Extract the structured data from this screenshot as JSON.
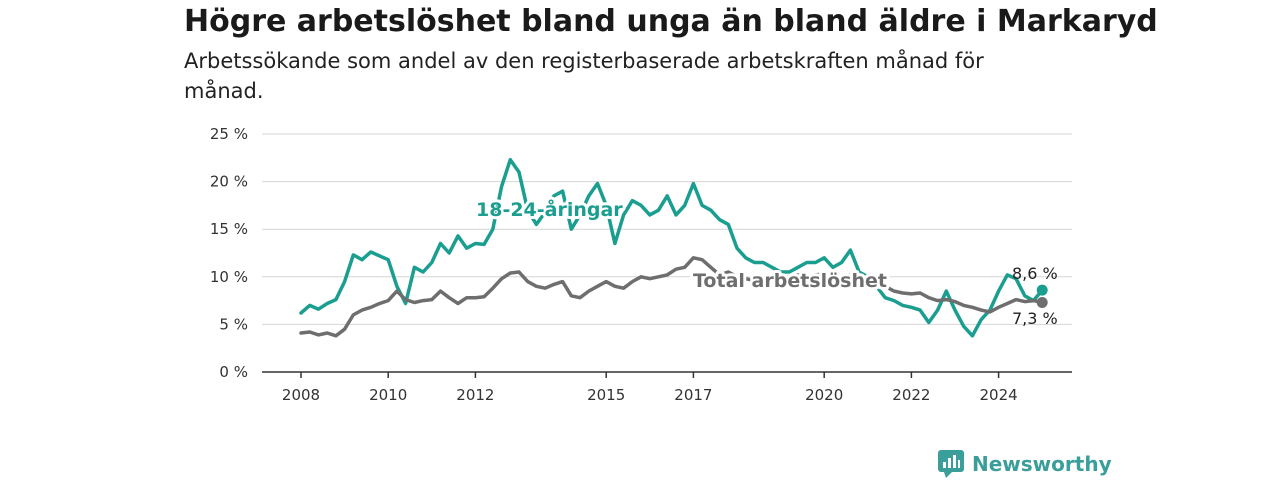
{
  "title": "Högre arbetslöshet bland unga än bland äldre i Markaryd",
  "subtitle": "Arbetssökande som andel av den registerbaserade arbetskraften månad för månad.",
  "brand": {
    "name": "Newsworthy",
    "icon": "newsworthy-logo-icon",
    "color": "#3a9e9a"
  },
  "chart_data": {
    "type": "line",
    "title": "Högre arbetslöshet bland unga än bland äldre i Markaryd",
    "subtitle": "Arbetssökande som andel av den registerbaserade arbetskraften månad för månad.",
    "xlabel": "",
    "ylabel": "",
    "xlim": [
      2007.8,
      2025.6
    ],
    "ylim": [
      0,
      25
    ],
    "x_ticks": [
      "2008",
      "2010",
      "2012",
      "2015",
      "2017",
      "2020",
      "2022",
      "2024"
    ],
    "y_ticks": [
      "0 %",
      "5 %",
      "10 %",
      "15 %",
      "20 %",
      "25 %"
    ],
    "grid": true,
    "series": [
      {
        "name": "18-24-åringar",
        "color": "#1a9e8f",
        "end_label": "8,6 %",
        "x": [
          2008.0,
          2008.2,
          2008.4,
          2008.6,
          2008.8,
          2009.0,
          2009.2,
          2009.4,
          2009.6,
          2009.8,
          2010.0,
          2010.2,
          2010.4,
          2010.6,
          2010.8,
          2011.0,
          2011.2,
          2011.4,
          2011.6,
          2011.8,
          2012.0,
          2012.2,
          2012.4,
          2012.6,
          2012.8,
          2013.0,
          2013.2,
          2013.4,
          2013.6,
          2013.8,
          2014.0,
          2014.2,
          2014.4,
          2014.6,
          2014.8,
          2015.0,
          2015.2,
          2015.4,
          2015.6,
          2015.8,
          2016.0,
          2016.2,
          2016.4,
          2016.6,
          2016.8,
          2017.0,
          2017.2,
          2017.4,
          2017.6,
          2017.8,
          2018.0,
          2018.2,
          2018.4,
          2018.6,
          2018.8,
          2019.0,
          2019.2,
          2019.4,
          2019.6,
          2019.8,
          2020.0,
          2020.2,
          2020.4,
          2020.6,
          2020.8,
          2021.0,
          2021.2,
          2021.4,
          2021.6,
          2021.8,
          2022.0,
          2022.2,
          2022.4,
          2022.6,
          2022.8,
          2023.0,
          2023.2,
          2023.4,
          2023.6,
          2023.8,
          2024.0,
          2024.2,
          2024.4,
          2024.6,
          2024.8,
          2025.0
        ],
        "y": [
          6.2,
          7.0,
          6.6,
          7.2,
          7.6,
          9.5,
          12.3,
          11.8,
          12.6,
          12.2,
          11.8,
          9.0,
          7.2,
          11.0,
          10.5,
          11.5,
          13.5,
          12.5,
          14.3,
          13.0,
          13.5,
          13.4,
          15.0,
          19.5,
          22.3,
          21.0,
          17.0,
          15.5,
          16.8,
          18.5,
          19.0,
          15.0,
          16.5,
          18.5,
          19.8,
          17.5,
          13.5,
          16.5,
          18.0,
          17.5,
          16.5,
          17.0,
          18.5,
          16.5,
          17.5,
          19.8,
          17.5,
          17.0,
          16.0,
          15.5,
          13.0,
          12.0,
          11.5,
          11.5,
          11.0,
          10.5,
          10.5,
          11.0,
          11.5,
          11.5,
          12.0,
          11.0,
          11.5,
          12.8,
          10.5,
          10.0,
          9.0,
          7.8,
          7.5,
          7.0,
          6.8,
          6.5,
          5.2,
          6.5,
          8.5,
          6.5,
          4.8,
          3.8,
          5.5,
          6.5,
          8.5,
          10.2,
          9.8,
          8.0,
          7.5,
          8.6
        ]
      },
      {
        "name": "Total arbetslöshet",
        "color": "#6e6e6e",
        "end_label": "7,3 %",
        "x": [
          2008.0,
          2008.2,
          2008.4,
          2008.6,
          2008.8,
          2009.0,
          2009.2,
          2009.4,
          2009.6,
          2009.8,
          2010.0,
          2010.2,
          2010.4,
          2010.6,
          2010.8,
          2011.0,
          2011.2,
          2011.4,
          2011.6,
          2011.8,
          2012.0,
          2012.2,
          2012.4,
          2012.6,
          2012.8,
          2013.0,
          2013.2,
          2013.4,
          2013.6,
          2013.8,
          2014.0,
          2014.2,
          2014.4,
          2014.6,
          2014.8,
          2015.0,
          2015.2,
          2015.4,
          2015.6,
          2015.8,
          2016.0,
          2016.2,
          2016.4,
          2016.6,
          2016.8,
          2017.0,
          2017.2,
          2017.4,
          2017.6,
          2017.8,
          2018.0,
          2018.2,
          2018.4,
          2018.6,
          2018.8,
          2019.0,
          2019.2,
          2019.4,
          2019.6,
          2019.8,
          2020.0,
          2020.2,
          2020.4,
          2020.6,
          2020.8,
          2021.0,
          2021.2,
          2021.4,
          2021.6,
          2021.8,
          2022.0,
          2022.2,
          2022.4,
          2022.6,
          2022.8,
          2023.0,
          2023.2,
          2023.4,
          2023.6,
          2023.8,
          2024.0,
          2024.2,
          2024.4,
          2024.6,
          2024.8,
          2025.0
        ],
        "y": [
          4.1,
          4.2,
          3.9,
          4.1,
          3.8,
          4.5,
          6.0,
          6.5,
          6.8,
          7.2,
          7.5,
          8.5,
          7.6,
          7.3,
          7.5,
          7.6,
          8.5,
          7.8,
          7.2,
          7.8,
          7.8,
          7.9,
          8.8,
          9.8,
          10.4,
          10.5,
          9.5,
          9.0,
          8.8,
          9.2,
          9.5,
          8.0,
          7.8,
          8.5,
          9.0,
          9.5,
          9.0,
          8.8,
          9.5,
          10.0,
          9.8,
          10.0,
          10.2,
          10.8,
          11.0,
          12.0,
          11.8,
          11.0,
          10.2,
          10.5,
          10.0,
          9.8,
          9.6,
          9.8,
          10.0,
          9.9,
          10.0,
          10.2,
          10.0,
          10.2,
          10.3,
          10.0,
          9.8,
          10.2,
          9.8,
          9.8,
          9.5,
          9.0,
          8.5,
          8.3,
          8.2,
          8.3,
          7.8,
          7.5,
          7.6,
          7.4,
          7.0,
          6.8,
          6.5,
          6.3,
          6.8,
          7.2,
          7.6,
          7.4,
          7.5,
          7.3
        ]
      }
    ]
  }
}
